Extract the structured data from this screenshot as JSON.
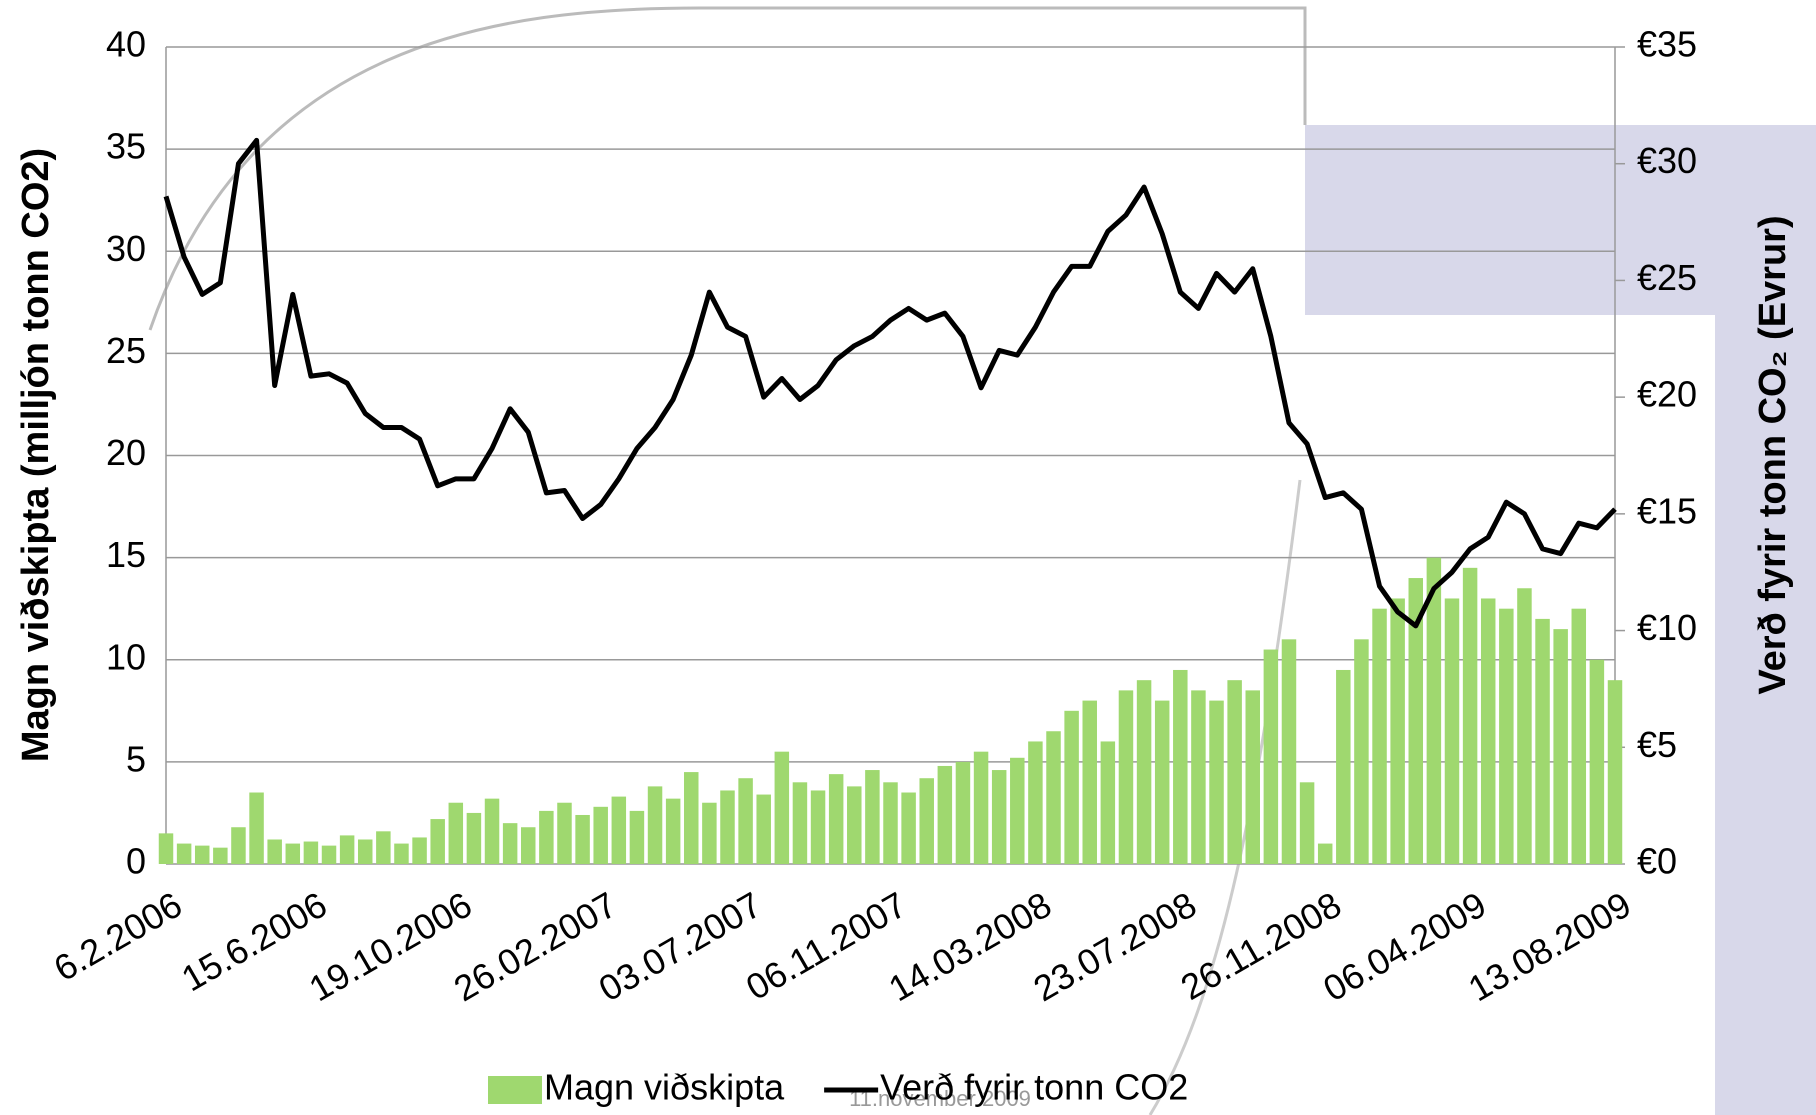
{
  "chart_data": {
    "type": "bar-line",
    "y_label": "Magn viðskipta (milljón tonn CO2)",
    "y2_label": "Verð fyrir tonn CO₂ (Evrur)",
    "footer": "11.nóvember 2009",
    "categories": [
      "6.2.2006",
      null,
      null,
      null,
      null,
      null,
      null,
      null,
      "15.6.2006",
      null,
      null,
      null,
      null,
      null,
      null,
      null,
      "19.10.2006",
      null,
      null,
      null,
      null,
      null,
      null,
      null,
      "26.02.2007",
      null,
      null,
      null,
      null,
      null,
      null,
      null,
      "03.07.2007",
      null,
      null,
      null,
      null,
      null,
      null,
      null,
      "06.11.2007",
      null,
      null,
      null,
      null,
      null,
      null,
      null,
      "14.03.2008",
      null,
      null,
      null,
      null,
      null,
      null,
      null,
      "23.07.2008",
      null,
      null,
      null,
      null,
      null,
      null,
      null,
      "26.11.2008",
      null,
      null,
      null,
      null,
      null,
      null,
      null,
      "06.04.2009",
      null,
      null,
      null,
      null,
      null,
      null,
      null,
      "13.08.2009"
    ],
    "series": [
      {
        "name": "Magn viðskipta",
        "type": "bar",
        "color": "#9fd86f",
        "values": [
          1.5,
          1.0,
          0.9,
          0.8,
          1.8,
          3.5,
          1.2,
          1.0,
          1.1,
          0.9,
          1.4,
          1.2,
          1.6,
          1.0,
          1.3,
          2.2,
          3.0,
          2.5,
          3.2,
          2.0,
          1.8,
          2.6,
          3.0,
          2.4,
          2.8,
          3.3,
          2.6,
          3.8,
          3.2,
          4.5,
          3.0,
          3.6,
          4.2,
          3.4,
          5.5,
          4.0,
          3.6,
          4.4,
          3.8,
          4.6,
          4.0,
          3.5,
          4.2,
          4.8,
          5.0,
          5.5,
          4.6,
          5.2,
          6.0,
          6.5,
          7.5,
          8.0,
          6.0,
          8.5,
          9.0,
          8.0,
          9.5,
          8.5,
          8.0,
          9.0,
          8.5,
          10.5,
          11.0,
          4.0,
          1.0,
          9.5,
          11.0,
          12.5,
          13.0,
          14.0,
          15.0,
          13.0,
          14.5,
          13.0,
          12.5,
          13.5,
          12.0,
          11.5,
          12.5,
          10.0,
          9.0
        ]
      },
      {
        "name": "Verð fyrir tonn CO2",
        "type": "line",
        "axis": "y2",
        "color": "#000000",
        "values": [
          28.6,
          26.0,
          24.4,
          24.9,
          30.0,
          31.0,
          20.5,
          24.4,
          20.9,
          21.0,
          20.6,
          19.3,
          18.7,
          18.7,
          18.2,
          16.2,
          16.5,
          16.5,
          17.8,
          19.5,
          18.5,
          15.9,
          16.0,
          14.8,
          15.4,
          16.5,
          17.8,
          18.7,
          19.9,
          21.8,
          24.5,
          23.0,
          22.6,
          20.0,
          20.8,
          19.9,
          20.5,
          21.6,
          22.2,
          22.6,
          23.3,
          23.8,
          23.3,
          23.6,
          22.6,
          20.4,
          22.0,
          21.8,
          23.0,
          24.5,
          25.6,
          25.6,
          27.1,
          27.8,
          29.0,
          27.0,
          24.5,
          23.8,
          25.3,
          24.5,
          25.5,
          22.6,
          18.9,
          18.0,
          15.7,
          15.9,
          15.2,
          11.9,
          10.8,
          10.2,
          11.8,
          12.5,
          13.5,
          14.0,
          15.5,
          15.0,
          13.5,
          13.3,
          14.6,
          14.4,
          15.2
        ]
      }
    ],
    "ylim": [
      0,
      40
    ],
    "yticks": [
      0,
      5,
      10,
      15,
      20,
      25,
      30,
      35,
      40
    ],
    "y2lim": [
      0,
      35
    ],
    "y2ticks": [
      {
        "value": 0,
        "label": "€0"
      },
      {
        "value": 5,
        "label": "€5"
      },
      {
        "value": 10,
        "label": "€10"
      },
      {
        "value": 15,
        "label": "€15"
      },
      {
        "value": 20,
        "label": "€20"
      },
      {
        "value": 25,
        "label": "€25"
      },
      {
        "value": 30,
        "label": "€30"
      },
      {
        "value": 35,
        "label": "€35"
      }
    ],
    "grid": true
  }
}
